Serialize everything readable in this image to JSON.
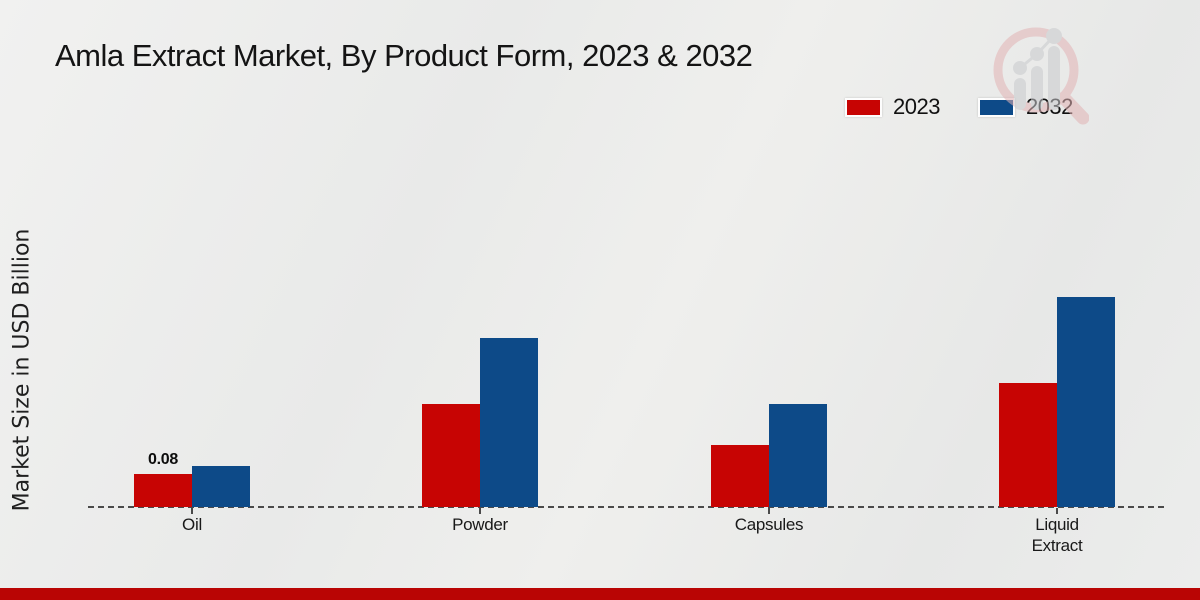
{
  "title": "Amla Extract Market, By Product Form, 2023 & 2032",
  "icons": {
    "watermark": "magnifier-bar-chart-logo-icon"
  },
  "colors": {
    "series_2023": "#c70403",
    "series_2032": "#0d4a88",
    "footer_strip": "#b90504",
    "axis": "#4a4a4a",
    "title_text": "#141414"
  },
  "legend": {
    "items": [
      "2023",
      "2032"
    ],
    "position": "top-right"
  },
  "chart_data": {
    "type": "bar",
    "title": "Amla Extract Market, By Product Form, 2023 & 2032",
    "xlabel": "",
    "ylabel": "Market Size in USD Billion",
    "categories": [
      "Oil",
      "Powder",
      "Capsules",
      "Liquid Extract"
    ],
    "series": [
      {
        "name": "2023",
        "color": "#c70403",
        "values": [
          0.08,
          0.25,
          0.15,
          0.3
        ]
      },
      {
        "name": "2032",
        "color": "#0d4a88",
        "values": [
          0.1,
          0.41,
          0.25,
          0.51
        ]
      }
    ],
    "annotations": [
      {
        "category_index": 0,
        "series_index": 0,
        "text": "0.08"
      }
    ],
    "ylim": [
      0,
      0.55
    ],
    "grid": false,
    "y_axis_ticks_visible": false,
    "baseline_style": "dashed",
    "legend_position": "top-right"
  }
}
